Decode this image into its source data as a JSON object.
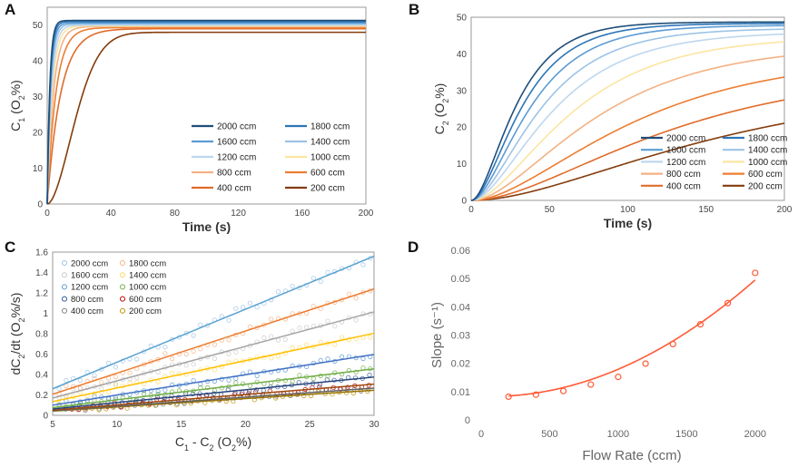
{
  "colors": {
    "2000": "#1f4e79",
    "1800": "#2e75b6",
    "1600": "#5b9bd5",
    "1400": "#9dc3e6",
    "1200": "#bdd7ee",
    "1000": "#fbe5a2",
    "800": "#f4b183",
    "600": "#ed7d31",
    "400": "#e06b2a",
    "200": "#843c0c",
    "scatter": {
      "2000": "#9dc3e6",
      "1800": "#f4b183",
      "1600": "#c9c9c9",
      "1400": "#ffd966",
      "1200": "#5b9bd5",
      "1000": "#70ad47",
      "800": "#2f5597",
      "600": "#c00000",
      "400": "#7f7f7f",
      "200": "#bf9000"
    },
    "scatter_fit": {
      "2000": "#5ba3d0",
      "1800": "#ed7d31",
      "1600": "#a5a5a5",
      "1400": "#ffc000",
      "1200": "#4472c4",
      "1000": "#70ad47",
      "800": "#264478",
      "600": "#9e480e",
      "400": "#636363",
      "200": "#997300"
    },
    "slope": "#ff5a36"
  },
  "chart_data": [
    {
      "panel": "A",
      "type": "line",
      "xlabel": "Time (s)",
      "ylabel": "C1 (O2%)",
      "ylabel_parts": {
        "main": "C",
        "sub1": "1",
        "open": " (O",
        "sub2": "2",
        "close": "%)"
      },
      "xlim": [
        0,
        200
      ],
      "ylim": [
        0,
        55
      ],
      "xticks": [
        0,
        40,
        80,
        120,
        160,
        200
      ],
      "yticks": [
        0,
        10,
        20,
        30,
        40,
        50
      ],
      "legend": [
        "2000 ccm",
        "1800 ccm",
        "1600 ccm",
        "1400 ccm",
        "1200 ccm",
        "1000 ccm",
        "800 ccm",
        "600 ccm",
        "400 ccm",
        "200 ccm"
      ],
      "series": [
        {
          "name": "2000 ccm",
          "plateau": 51.3,
          "tau": 1.6,
          "shape": "exp"
        },
        {
          "name": "1800 ccm",
          "plateau": 51.0,
          "tau": 1.8,
          "shape": "exp"
        },
        {
          "name": "1600 ccm",
          "plateau": 50.6,
          "tau": 2.0,
          "shape": "exp"
        },
        {
          "name": "1400 ccm",
          "plateau": 50.3,
          "tau": 2.3,
          "shape": "exp"
        },
        {
          "name": "1200 ccm",
          "plateau": 50.0,
          "tau": 2.7,
          "shape": "exp"
        },
        {
          "name": "1000 ccm",
          "plateau": 49.8,
          "tau": 3.2,
          "shape": "exp"
        },
        {
          "name": "800 ccm",
          "plateau": 49.6,
          "tau": 4.0,
          "shape": "exp"
        },
        {
          "name": "600 ccm",
          "plateau": 49.3,
          "tau": 5.5,
          "shape": "exp"
        },
        {
          "name": "400 ccm",
          "plateau": 49.0,
          "tau": 8.5,
          "shape": "exp"
        },
        {
          "name": "200 ccm",
          "plateau": 48.0,
          "tau": 22.0,
          "shape": "s"
        }
      ]
    },
    {
      "panel": "B",
      "type": "line",
      "xlabel": "Time (s)",
      "ylabel": "C2 (O2%)",
      "ylabel_parts": {
        "main": "C",
        "sub1": "2",
        "open": " (O",
        "sub2": "2",
        "close": "%)"
      },
      "xlim": [
        0,
        200
      ],
      "ylim": [
        0,
        50
      ],
      "xticks": [
        0,
        50,
        100,
        150,
        200
      ],
      "yticks": [
        0,
        10,
        20,
        30,
        40,
        50
      ],
      "legend": [
        "2000 ccm",
        "1800 ccm",
        "1600 ccm",
        "1400 ccm",
        "1200 ccm",
        "1000 ccm",
        "800 ccm",
        "600 ccm",
        "400 ccm",
        "200 ccm"
      ],
      "series": [
        {
          "name": "2000 ccm",
          "final": 48.7,
          "tau": 22
        },
        {
          "name": "1800 ccm",
          "final": 48.3,
          "tau": 25
        },
        {
          "name": "1600 ccm",
          "final": 47.8,
          "tau": 29
        },
        {
          "name": "1400 ccm",
          "final": 47.0,
          "tau": 34
        },
        {
          "name": "1200 ccm",
          "final": 46.0,
          "tau": 40
        },
        {
          "name": "1000 ccm",
          "final": 44.8,
          "tau": 49
        },
        {
          "name": "800 ccm",
          "final": 42.5,
          "tau": 61
        },
        {
          "name": "600 ccm",
          "final": 39.5,
          "tau": 78
        },
        {
          "name": "400 ccm",
          "final": 36.0,
          "tau": 97
        },
        {
          "name": "200 ccm",
          "final": 32.0,
          "tau": 120
        }
      ]
    },
    {
      "panel": "C",
      "type": "scatter",
      "xlabel": "C1 - C2 (O2%)",
      "ylabel": "dC2/dt (O2%/s)",
      "xlabel_parts": {
        "a": "C",
        "as": "1",
        "mid": " - C",
        "bs": "2",
        "open": " (O",
        "os": "2",
        "close": "%)"
      },
      "ylabel_parts": {
        "a": "dC",
        "as": "2",
        "mid": "/dt (O",
        "os": "2",
        "close": "%/s)"
      },
      "xlim": [
        5,
        30
      ],
      "ylim": [
        0,
        1.6
      ],
      "xticks": [
        5,
        10,
        15,
        20,
        25,
        30
      ],
      "yticks": [
        0,
        0.2,
        0.4,
        0.6,
        0.8,
        1,
        1.2,
        1.4,
        1.6
      ],
      "ytick_labels": [
        "0",
        "0.2",
        "0.4",
        "0.6",
        "0.8",
        "1",
        "1.2",
        "1.4",
        "1.6"
      ],
      "legend": [
        "2000 ccm",
        "1800 ccm",
        "1600 ccm",
        "1400 ccm",
        "1200 ccm",
        "1000 ccm",
        "800 ccm",
        "600 ccm",
        "400 ccm",
        "200 ccm"
      ],
      "series": [
        {
          "name": "2000 ccm",
          "slope": 0.052,
          "x0": 5.5,
          "x1": 30
        },
        {
          "name": "1800 ccm",
          "slope": 0.0413,
          "x0": 5.5,
          "x1": 30
        },
        {
          "name": "1600 ccm",
          "slope": 0.0338,
          "x0": 5.5,
          "x1": 30
        },
        {
          "name": "1400 ccm",
          "slope": 0.0268,
          "x0": 5.5,
          "x1": 30
        },
        {
          "name": "1200 ccm",
          "slope": 0.0199,
          "x0": 5.5,
          "x1": 30
        },
        {
          "name": "1000 ccm",
          "slope": 0.0152,
          "x0": 5.5,
          "x1": 30
        },
        {
          "name": "800 ccm",
          "slope": 0.0125,
          "x0": 6.0,
          "x1": 30
        },
        {
          "name": "600 ccm",
          "slope": 0.0102,
          "x0": 6.5,
          "x1": 30
        },
        {
          "name": "400 ccm",
          "slope": 0.0089,
          "x0": 7.0,
          "x1": 30
        },
        {
          "name": "200 ccm",
          "slope": 0.0082,
          "x0": 7.5,
          "x1": 30
        }
      ]
    },
    {
      "panel": "D",
      "type": "scatter",
      "xlabel": "Flow Rate (ccm)",
      "ylabel": "Slope (s⁻¹)",
      "xlim": [
        0,
        2200
      ],
      "ylim": [
        0,
        0.06
      ],
      "xticks": [
        0,
        500,
        1000,
        1500,
        2000
      ],
      "yticks": [
        0,
        0.01,
        0.02,
        0.03,
        0.04,
        0.05,
        0.06
      ],
      "ytick_labels": [
        "0",
        "0.01",
        "0.02",
        "0.03",
        "0.04",
        "0.05",
        "0.06"
      ],
      "x": [
        200,
        400,
        600,
        800,
        1000,
        1200,
        1400,
        1600,
        1800,
        2000
      ],
      "y": [
        0.0082,
        0.0089,
        0.0102,
        0.0125,
        0.0152,
        0.0199,
        0.0268,
        0.0338,
        0.0413,
        0.052
      ],
      "fit": {
        "type": "poly2",
        "a": 1.1e-08,
        "b": -1.4e-06,
        "c": 0.0083
      }
    }
  ]
}
